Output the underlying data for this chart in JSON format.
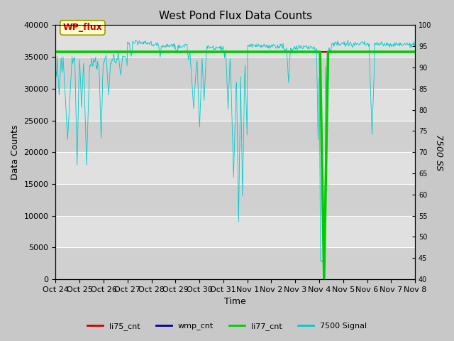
{
  "title": "West Pond Flux Data Counts",
  "xlabel": "Time",
  "ylabel_left": "Data Counts",
  "ylabel_right": "7500 SS",
  "ylim_left": [
    0,
    40000
  ],
  "ylim_right": [
    40,
    100
  ],
  "fig_bg_color": "#c8c8c8",
  "plot_bg_color": "#e8e8e8",
  "alt_band_color": "#d8d8d8",
  "li75_color": "#cc0000",
  "wmp_color": "#000099",
  "li77_color": "#00cc00",
  "signal_color": "#00cccc",
  "li75_value": 35800,
  "wmp_value": 35800,
  "li77_value": 35800,
  "annotation_text": "WP_flux",
  "annotation_color": "#cc0000",
  "annotation_bg": "#ffffcc",
  "annotation_border": "#999900",
  "tick_labels": [
    "Oct 24",
    "Oct 25",
    "Oct 26",
    "Oct 27",
    "Oct 28",
    "Oct 29",
    "Oct 30",
    "Oct 31",
    "Nov 1",
    "Nov 2",
    "Nov 3",
    "Nov 4",
    "Nov 5",
    "Nov 6",
    "Nov 7",
    "Nov 8"
  ]
}
